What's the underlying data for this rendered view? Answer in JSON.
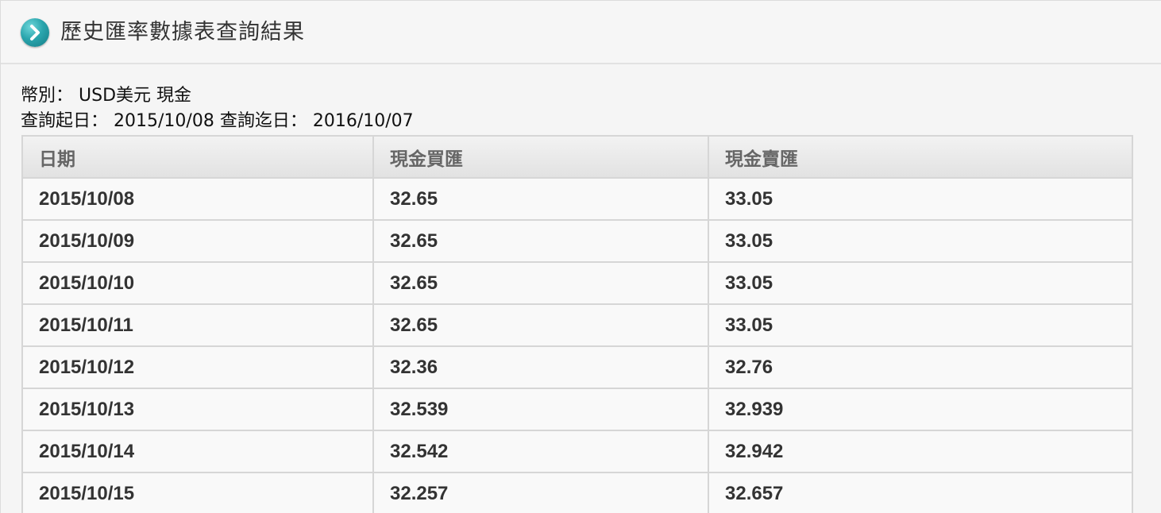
{
  "title": "歷史匯率數據表查詢結果",
  "info": {
    "currency_label": "幣別：",
    "currency_value": "USD美元 現金",
    "start_label": "查詢起日：",
    "start_value": "2015/10/08",
    "end_label": "查詢迄日：",
    "end_value": "2016/10/07"
  },
  "table": {
    "headers": [
      "日期",
      "現金買匯",
      "現金賣匯"
    ],
    "rows": [
      [
        "2015/10/08",
        "32.65",
        "33.05"
      ],
      [
        "2015/10/09",
        "32.65",
        "33.05"
      ],
      [
        "2015/10/10",
        "32.65",
        "33.05"
      ],
      [
        "2015/10/11",
        "32.65",
        "33.05"
      ],
      [
        "2015/10/12",
        "32.36",
        "32.76"
      ],
      [
        "2015/10/13",
        "32.539",
        "32.939"
      ],
      [
        "2015/10/14",
        "32.542",
        "32.942"
      ],
      [
        "2015/10/15",
        "32.257",
        "32.657"
      ]
    ]
  },
  "icons": {
    "title_icon": "chevron-right-icon"
  },
  "colors": {
    "accent": "#2aa5ad"
  }
}
